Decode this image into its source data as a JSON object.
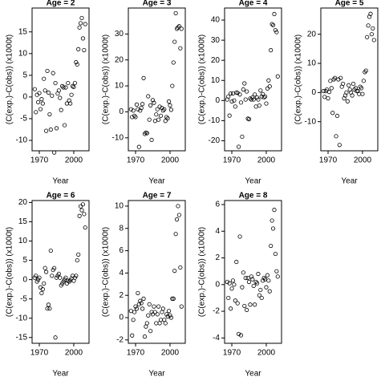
{
  "chart_data": [
    {
      "type": "scatter",
      "title": "Age = 2",
      "x_label": "Year",
      "y_label": "(C(exp.)-C(obs)) (x1000t)",
      "color": "#000000",
      "x": [
        1966,
        1967,
        1968,
        1969,
        1970,
        1971,
        1972,
        1973,
        1974,
        1975,
        1976,
        1977,
        1978,
        1979,
        1980,
        1981,
        1982,
        1983,
        1984,
        1985,
        1986,
        1987,
        1988,
        1989,
        1990,
        1991,
        1992,
        1993,
        1994,
        1995,
        1996,
        1997,
        1998,
        1999,
        2000,
        2001,
        2002,
        2003,
        2004,
        2005,
        2006,
        2007,
        2008,
        2009,
        2010
      ],
      "values": [
        1.8,
        -3.5,
        0.5,
        -1.2,
        0.9,
        -2.8,
        -0.5,
        -1.5,
        4.2,
        1.5,
        -7.8,
        6,
        1,
        -4,
        -7.5,
        0.3,
        5.5,
        -12.8,
        3.2,
        -7.2,
        0.8,
        1.5,
        -0.2,
        -3,
        2.5,
        2.2,
        -6.5,
        2.2,
        -1.5,
        3.2,
        -0.8,
        -1.5,
        0.5,
        2.5,
        2.3,
        3.2,
        8,
        7.5,
        11,
        16,
        17,
        18.2,
        13.5,
        10.8,
        16.8
      ],
      "xlim": [
        1963.7,
        2013.3
      ],
      "xticks": [
        1970,
        2000
      ],
      "ylim": [
        -12.4,
        20.5
      ],
      "yticks": [
        -10,
        -5,
        0,
        5,
        10,
        15
      ]
    },
    {
      "type": "scatter",
      "title": "Age = 3",
      "x_label": "Year",
      "y_label": "(C(exp.)-C(obs)) (x1000t)",
      "color": "#000000",
      "x": [
        1966,
        1967,
        1968,
        1969,
        1970,
        1971,
        1972,
        1973,
        1974,
        1975,
        1976,
        1977,
        1978,
        1979,
        1980,
        1981,
        1982,
        1983,
        1984,
        1985,
        1986,
        1987,
        1988,
        1989,
        1990,
        1991,
        1992,
        1993,
        1994,
        1995,
        1996,
        1997,
        1998,
        1999,
        2000,
        2001,
        2002,
        2003,
        2004,
        2005,
        2006,
        2007,
        2008,
        2009,
        2010
      ],
      "values": [
        1,
        -2,
        0.5,
        -1.5,
        -2,
        2.8,
        1,
        -13.5,
        0.5,
        1.5,
        3,
        13,
        -8.5,
        -8,
        -8.2,
        6,
        -3,
        2.5,
        -10.8,
        4.5,
        3.5,
        -3.5,
        -1,
        1,
        -3,
        2,
        -1.5,
        1.5,
        0.5,
        1,
        -3.5,
        -2,
        -2.5,
        4,
        2.5,
        0.8,
        10,
        19,
        27,
        38,
        32,
        32.5,
        33,
        24.5,
        32
      ],
      "xlim": [
        1963.7,
        2013.3
      ],
      "xticks": [
        1970,
        2000
      ],
      "ylim": [
        -15,
        40
      ],
      "yticks": [
        -10,
        0,
        10,
        20,
        30
      ]
    },
    {
      "type": "scatter",
      "title": "Age = 4",
      "x_label": "Year",
      "y_label": "(C(exp.)-C(obs)) (x1000t)",
      "color": "#000000",
      "x": [
        1966,
        1967,
        1968,
        1969,
        1970,
        1971,
        1972,
        1973,
        1974,
        1975,
        1976,
        1977,
        1978,
        1979,
        1980,
        1981,
        1982,
        1983,
        1984,
        1985,
        1986,
        1987,
        1988,
        1989,
        1990,
        1991,
        1992,
        1993,
        1994,
        1995,
        1996,
        1997,
        1998,
        1999,
        2000,
        2001,
        2002,
        2003,
        2004,
        2005,
        2006,
        2007,
        2008,
        2009,
        2010
      ],
      "values": [
        0.5,
        2,
        -7.5,
        3.5,
        -0.5,
        3.5,
        0,
        -3,
        4,
        3.8,
        -23,
        3,
        -1,
        -18,
        5.5,
        8.5,
        0.5,
        4.5,
        -9,
        -9.3,
        1,
        0.5,
        1.5,
        0.5,
        3,
        -3,
        1.5,
        0.5,
        -2.5,
        5,
        2,
        3.2,
        1.5,
        2,
        -1.5,
        6,
        10,
        7,
        25,
        38,
        37.5,
        43,
        35,
        34,
        12
      ],
      "xlim": [
        1963.7,
        2013.3
      ],
      "xticks": [
        1970,
        2000
      ],
      "ylim": [
        -25,
        46
      ],
      "yticks": [
        -20,
        -10,
        0,
        10,
        20,
        30,
        40
      ]
    },
    {
      "type": "scatter",
      "title": "Age = 5",
      "x_label": "Year",
      "y_label": "(C(exp.)-C(obs)) (x1000t)",
      "color": "#000000",
      "x": [
        1966,
        1967,
        1968,
        1969,
        1970,
        1971,
        1972,
        1973,
        1974,
        1975,
        1976,
        1977,
        1978,
        1979,
        1980,
        1981,
        1982,
        1983,
        1984,
        1985,
        1986,
        1987,
        1988,
        1989,
        1990,
        1991,
        1992,
        1993,
        1994,
        1995,
        1996,
        1997,
        1998,
        1999,
        2000,
        2001,
        2002,
        2003,
        2004,
        2005,
        2006,
        2007,
        2008,
        2009,
        2010
      ],
      "values": [
        0.5,
        -1.5,
        0.5,
        1,
        -2,
        0.2,
        4,
        1.5,
        -7,
        4.5,
        5,
        -15,
        -8,
        4.5,
        -18,
        5,
        2,
        3,
        -2,
        -1,
        0,
        -3,
        2.5,
        1,
        0,
        -1,
        3,
        1,
        1.5,
        0.5,
        0.5,
        -0.5,
        2,
        1.5,
        -0.5,
        4,
        7,
        7.5,
        19,
        23,
        26,
        27,
        20,
        22,
        18
      ],
      "xlim": [
        1963.7,
        2013.3
      ],
      "xticks": [
        1970,
        2000
      ],
      "ylim": [
        -20,
        29
      ],
      "yticks": [
        -10,
        0,
        10,
        20
      ]
    },
    {
      "type": "scatter",
      "title": "Age = 6",
      "x_label": "Year",
      "y_label": "(C(exp.)-C(obs)) (x1000t)",
      "color": "#000000",
      "x": [
        1966,
        1967,
        1968,
        1969,
        1970,
        1971,
        1972,
        1973,
        1974,
        1975,
        1976,
        1977,
        1978,
        1979,
        1980,
        1981,
        1982,
        1983,
        1984,
        1985,
        1986,
        1987,
        1988,
        1989,
        1990,
        1991,
        1992,
        1993,
        1994,
        1995,
        1996,
        1997,
        1998,
        1999,
        2000,
        2001,
        2002,
        2003,
        2004,
        2005,
        2006,
        2007,
        2008,
        2009,
        2010
      ],
      "values": [
        0.5,
        1,
        -0.5,
        0,
        0.5,
        -2,
        -3.5,
        -2.5,
        -1,
        3,
        2,
        -7.5,
        -6.5,
        -7.5,
        7.5,
        1,
        2.5,
        3,
        -15,
        0.5,
        1,
        1.5,
        0.5,
        -1.5,
        -1,
        -0.5,
        0,
        0.5,
        -1,
        -0.3,
        -0.5,
        -0.2,
        0.3,
        1,
        -0.3,
        0.5,
        1,
        5,
        6.5,
        16.5,
        19,
        18,
        19.5,
        17,
        13.5
      ],
      "xlim": [
        1963.7,
        2013.3
      ],
      "xticks": [
        1970,
        2000
      ],
      "ylim": [
        -16.5,
        20.5
      ],
      "yticks": [
        -15,
        -10,
        -5,
        0,
        5,
        10,
        15,
        20
      ]
    },
    {
      "type": "scatter",
      "title": "Age = 7",
      "x_label": "Year",
      "y_label": "(C(exp.)-C(obs)) (x1000t)",
      "color": "#000000",
      "x": [
        1966,
        1967,
        1968,
        1969,
        1970,
        1971,
        1972,
        1973,
        1974,
        1975,
        1976,
        1977,
        1978,
        1979,
        1980,
        1981,
        1982,
        1983,
        1984,
        1985,
        1986,
        1987,
        1988,
        1989,
        1990,
        1991,
        1992,
        1993,
        1994,
        1995,
        1996,
        1997,
        1998,
        1999,
        2000,
        2001,
        2002,
        2003,
        2004,
        2005,
        2006,
        2007,
        2008,
        2009,
        2010
      ],
      "values": [
        0.6,
        -1.6,
        -0.2,
        0.5,
        1,
        0.8,
        2.2,
        1.2,
        1.5,
        1.3,
        0.8,
        1.7,
        -1.7,
        -0.8,
        -0.5,
        0.2,
        1.2,
        -1.2,
        0.5,
        0.3,
        1,
        0.5,
        -0.5,
        0.3,
        1,
        -0.5,
        -0.2,
        0.5,
        0.8,
        -0.2,
        -0.5,
        0.3,
        0.1,
        0.6,
        0.2,
        0,
        1.7,
        1.7,
        4.2,
        7.5,
        8.8,
        10,
        9.2,
        4.5,
        1
      ],
      "xlim": [
        1963.7,
        2013.3
      ],
      "xticks": [
        1970,
        2000
      ],
      "ylim": [
        -2.3,
        10.5
      ],
      "yticks": [
        -2,
        0,
        2,
        4,
        6,
        8,
        10
      ]
    },
    {
      "type": "scatter",
      "title": "Age = 8",
      "x_label": "Year",
      "y_label": "(C(exp.)-C(obs)) (x1000t)",
      "color": "#000000",
      "x": [
        1966,
        1967,
        1968,
        1969,
        1970,
        1971,
        1972,
        1973,
        1974,
        1975,
        1976,
        1977,
        1978,
        1979,
        1980,
        1981,
        1982,
        1983,
        1984,
        1985,
        1986,
        1987,
        1988,
        1989,
        1990,
        1991,
        1992,
        1993,
        1994,
        1995,
        1996,
        1997,
        1998,
        1999,
        2000,
        2001,
        2002,
        2003,
        2004,
        2005,
        2006,
        2007,
        2008,
        2009,
        2010
      ],
      "values": [
        0.2,
        -1,
        0.1,
        -1.8,
        -0.3,
        0.3,
        0,
        -1.2,
        1.7,
        -1.4,
        -3.7,
        3.6,
        -3.8,
        -0.2,
        0.9,
        -1.6,
        0.5,
        -1.9,
        0.5,
        0.2,
        -1.5,
        0.6,
        0.4,
        -0.1,
        -1.5,
        0.2,
        0.1,
        0.8,
        -0.8,
        -0.4,
        -1,
        0.3,
        0.5,
        0.4,
        -0.2,
        0.7,
        0.3,
        -0.5,
        2.9,
        4.8,
        4.2,
        5.6,
        2.3,
        1,
        0.6
      ],
      "xlim": [
        1963.7,
        2013.3
      ],
      "xticks": [
        1970,
        2000
      ],
      "ylim": [
        -4.4,
        6.3
      ],
      "yticks": [
        -4,
        -2,
        0,
        2,
        4,
        6
      ]
    }
  ]
}
